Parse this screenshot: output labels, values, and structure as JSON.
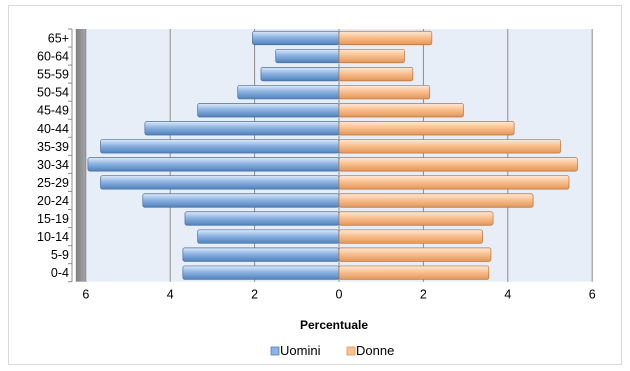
{
  "chart_data": {
    "type": "bar",
    "orientation": "horizontal",
    "title": "",
    "xlabel": "Percentuale",
    "ylabel": "",
    "categories": [
      "0-4",
      "5-9",
      "10-14",
      "15-19",
      "20-24",
      "25-29",
      "30-34",
      "35-39",
      "40-44",
      "45-49",
      "50-54",
      "55-59",
      "60-64",
      "65+"
    ],
    "series": [
      {
        "name": "Uomini",
        "color": "#8db3e2",
        "values": [
          3.7,
          3.7,
          3.35,
          3.65,
          4.65,
          5.65,
          5.95,
          5.65,
          4.6,
          3.35,
          2.4,
          1.85,
          1.5,
          2.05
        ]
      },
      {
        "name": "Donne",
        "color": "#fac08f",
        "values": [
          3.55,
          3.6,
          3.4,
          3.65,
          4.6,
          5.45,
          5.65,
          5.25,
          4.15,
          2.95,
          2.15,
          1.75,
          1.55,
          2.2
        ]
      }
    ],
    "xlim": [
      -6,
      6
    ],
    "xticks": [
      -6,
      -4,
      -2,
      0,
      2,
      4,
      6
    ],
    "xtick_labels": [
      "6",
      "4",
      "2",
      "0",
      "2",
      "4",
      "6"
    ],
    "grid": true,
    "legend_position": "bottom"
  }
}
